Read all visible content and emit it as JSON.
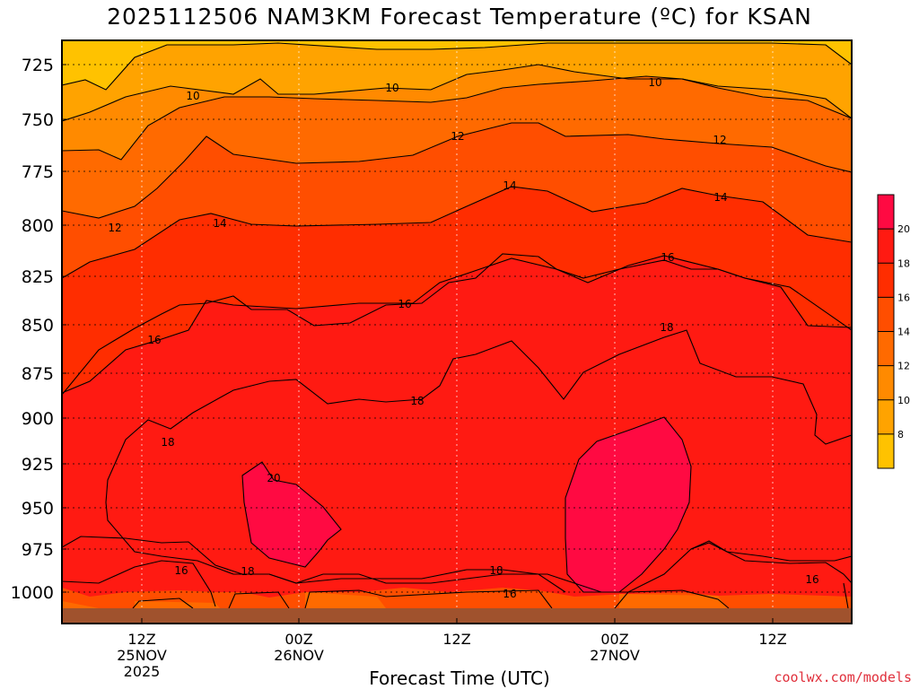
{
  "chart_data": {
    "type": "heatmap",
    "title": "2025112506 NAM3KM Forecast Temperature (ºC) for KSAN",
    "xlabel": "Forecast Time (UTC)",
    "ylabel": "",
    "y_axis": {
      "ticks": [
        "725",
        "750",
        "775",
        "800",
        "825",
        "850",
        "875",
        "900",
        "925",
        "950",
        "975",
        "1000"
      ],
      "inverted": true
    },
    "x_axis": {
      "ticks": [
        {
          "hour": "12Z",
          "date": "25NOV",
          "year": "2025"
        },
        {
          "hour": "00Z",
          "date": "26NOV",
          "year": ""
        },
        {
          "hour": "12Z",
          "date": "",
          "year": ""
        },
        {
          "hour": "00Z",
          "date": "27NOV",
          "year": ""
        },
        {
          "hour": "12Z",
          "date": "",
          "year": ""
        }
      ]
    },
    "grid": true,
    "contour_interval_C": 2,
    "contour_labels": [
      "10",
      "10",
      "10",
      "12",
      "12",
      "12",
      "14",
      "14",
      "14",
      "16",
      "16",
      "16",
      "16",
      "18",
      "18",
      "18",
      "18",
      "18",
      "20",
      "16",
      "16"
    ],
    "colorbar": {
      "ticks": [
        "8",
        "10",
        "12",
        "14",
        "16",
        "18",
        "20"
      ],
      "colors": [
        "#ffc200",
        "#ffa300",
        "#ff8a00",
        "#ff6a00",
        "#ff4e00",
        "#ff2d00",
        "#ff1a12",
        "#ff0a42"
      ]
    }
  },
  "credit": "coolwx.com/models"
}
